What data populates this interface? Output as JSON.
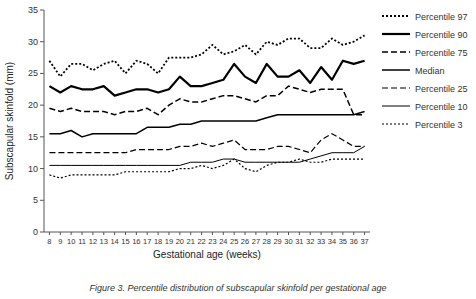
{
  "chart_data": {
    "type": "line",
    "x": [
      8,
      9,
      10,
      11,
      12,
      13,
      14,
      15,
      16,
      17,
      18,
      19,
      20,
      21,
      22,
      23,
      24,
      25,
      26,
      27,
      28,
      29,
      30,
      31,
      32,
      33,
      34,
      35,
      36,
      37
    ],
    "series": [
      {
        "name": "Percentile 97",
        "color": "black",
        "line_style": "dotted",
        "values": [
          27.0,
          24.5,
          26.5,
          26.5,
          25.5,
          26.5,
          27.0,
          25.0,
          27.0,
          26.5,
          25.0,
          27.5,
          27.5,
          27.5,
          28.0,
          29.5,
          28.0,
          28.5,
          29.5,
          28.0,
          30.0,
          29.5,
          30.5,
          30.5,
          29.0,
          29.0,
          30.5,
          29.5,
          30.0,
          31.0
        ]
      },
      {
        "name": "Percentile 90",
        "color": "black",
        "line_style": "solid",
        "values": [
          23.0,
          22.0,
          23.0,
          22.5,
          22.5,
          23.0,
          21.5,
          22.0,
          22.5,
          22.5,
          22.0,
          22.5,
          24.5,
          23.0,
          23.0,
          23.5,
          24.0,
          26.5,
          24.5,
          23.5,
          26.5,
          24.5,
          24.5,
          25.5,
          23.5,
          26.0,
          24.0,
          27.0,
          26.5,
          27.0
        ]
      },
      {
        "name": "Percentile 75",
        "color": "black",
        "line_style": "dashed",
        "values": [
          19.5,
          19.0,
          19.5,
          19.0,
          19.0,
          19.0,
          18.5,
          19.0,
          19.0,
          19.5,
          18.5,
          20.0,
          21.0,
          20.5,
          20.5,
          21.0,
          21.5,
          21.5,
          21.0,
          20.5,
          21.5,
          21.5,
          23.0,
          22.5,
          22.0,
          22.5,
          22.5,
          22.5,
          18.5,
          18.5
        ]
      },
      {
        "name": "Median",
        "color": "black",
        "line_style": "solid",
        "values": [
          15.5,
          15.5,
          16.0,
          15.0,
          15.5,
          15.5,
          15.5,
          15.5,
          15.5,
          16.5,
          16.5,
          16.5,
          17.0,
          17.0,
          17.5,
          17.5,
          17.5,
          17.5,
          17.5,
          17.5,
          18.0,
          18.5,
          18.5,
          18.5,
          18.5,
          18.5,
          18.5,
          18.5,
          18.5,
          19.0
        ]
      },
      {
        "name": "Percentile 25",
        "color": "black",
        "line_style": "dashed",
        "values": [
          12.5,
          12.5,
          12.5,
          12.5,
          12.5,
          12.5,
          12.5,
          12.5,
          13.0,
          13.0,
          13.0,
          13.0,
          13.5,
          13.5,
          14.0,
          13.5,
          14.0,
          14.5,
          13.0,
          13.0,
          13.0,
          13.5,
          13.5,
          13.0,
          12.5,
          14.5,
          15.5,
          14.5,
          13.5,
          13.5
        ]
      },
      {
        "name": "Percentile 10",
        "color": "black",
        "line_style": "solid",
        "values": [
          10.5,
          10.5,
          10.5,
          10.5,
          10.5,
          10.5,
          10.5,
          10.5,
          10.5,
          10.5,
          10.5,
          10.5,
          10.5,
          11.0,
          11.0,
          11.0,
          11.5,
          11.5,
          11.0,
          11.0,
          11.0,
          11.0,
          11.0,
          11.0,
          11.5,
          12.0,
          12.5,
          12.5,
          12.5,
          13.5
        ]
      },
      {
        "name": "Percentile 3",
        "color": "black",
        "line_style": "dotted",
        "values": [
          9.0,
          8.5,
          9.0,
          9.0,
          9.0,
          9.0,
          9.0,
          9.5,
          9.5,
          9.5,
          9.5,
          9.5,
          10.0,
          10.0,
          10.5,
          10.0,
          10.5,
          11.5,
          10.0,
          9.5,
          10.5,
          11.0,
          11.0,
          11.5,
          11.0,
          11.0,
          11.5,
          11.5,
          11.5,
          11.5
        ]
      }
    ],
    "x_label": "Gestational age (weeks)",
    "y_label": "Subscapular skinfold (mm)",
    "caption": "Figure 3. Percentile distribution of subscapular skinfold per gestational age",
    "xlim": [
      7.5,
      37.5
    ],
    "xticks": [
      8,
      9,
      10,
      11,
      12,
      13,
      14,
      15,
      16,
      17,
      18,
      19,
      20,
      21,
      22,
      23,
      24,
      25,
      26,
      27,
      28,
      29,
      30,
      31,
      32,
      33,
      34,
      35,
      36,
      37
    ],
    "ylim": [
      0,
      35
    ],
    "yticks": [
      0,
      5,
      10,
      15,
      20,
      25,
      30,
      35
    ],
    "grid": false,
    "legend": "right"
  }
}
